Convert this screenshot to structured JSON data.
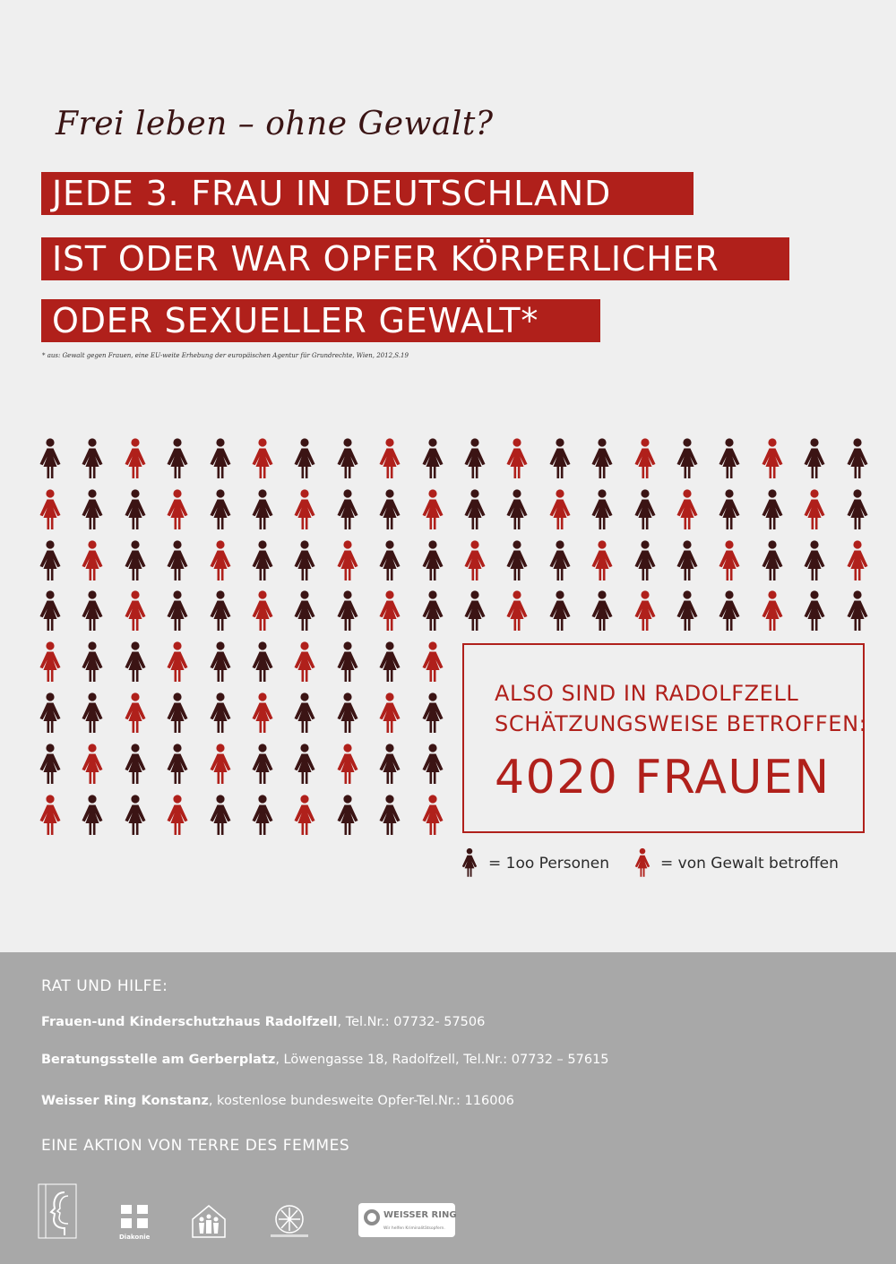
{
  "header": {
    "subtitle": "Frei leben – ohne Gewalt?",
    "headline_lines": [
      "JEDE 3. FRAU IN DEUTSCHLAND",
      "IST ODER WAR OPFER KÖRPERLICHER",
      "ODER SEXUELLER GEWALT*"
    ],
    "footnote": "* aus: Gewalt gegen Frauen, eine EU-weite Erhebung der europäischen Agentur für Grundrechte,  Wien, 2012,S.19"
  },
  "colors": {
    "accent": "#b0201b",
    "dark_figure": "#3b1414",
    "footer_bg": "#a8a8a8",
    "background": "#efefef"
  },
  "pictogram": {
    "icon": "woman-figure-icon",
    "grid_rows": [
      "DDRDDRDDRDDRDDRDDRDD",
      "RDDRDDRDDRDDRDDRDDRD",
      "DRDDRDDRDDRDDRDDRDDR",
      "DDRDDRDDRDDRDDRDDRDD",
      "RDDRDDRDDR",
      "DDRDDRDDRD",
      "DRDDRDDRDD",
      "RDDRDDRDDR"
    ]
  },
  "callout": {
    "line1": "ALSO SIND IN RADOLFZELL",
    "line2": "SCHÄTZUNGSWEISE BETROFFEN:",
    "figure": "4020 FRAUEN"
  },
  "legend": {
    "persons_label": "= 1oo Personen",
    "affected_label": "= von Gewalt betroffen"
  },
  "footer": {
    "heading": "RAT UND HILFE:",
    "contacts": [
      {
        "name": "Frauen-und Kinderschutzhaus Radolfzell",
        "detail": ", Tel.Nr.: 07732- 57506"
      },
      {
        "name": "Beratungsstelle am Gerberplatz",
        "detail": ", Löwengasse 18, Radolfzell, Tel.Nr.: 07732 – 57615"
      },
      {
        "name": "Weisser Ring Konstanz",
        "detail": ", kostenlose bundesweite Opfer-Tel.Nr.: 116006"
      }
    ],
    "aktion": "EINE AKTION VON TERRE DES FEMMES",
    "logos": {
      "diakonie": "Diakonie",
      "weisser_ring": "WEISSER RING",
      "weisser_ring_tagline": "Wir helfen Kriminalitätsopfern."
    }
  }
}
